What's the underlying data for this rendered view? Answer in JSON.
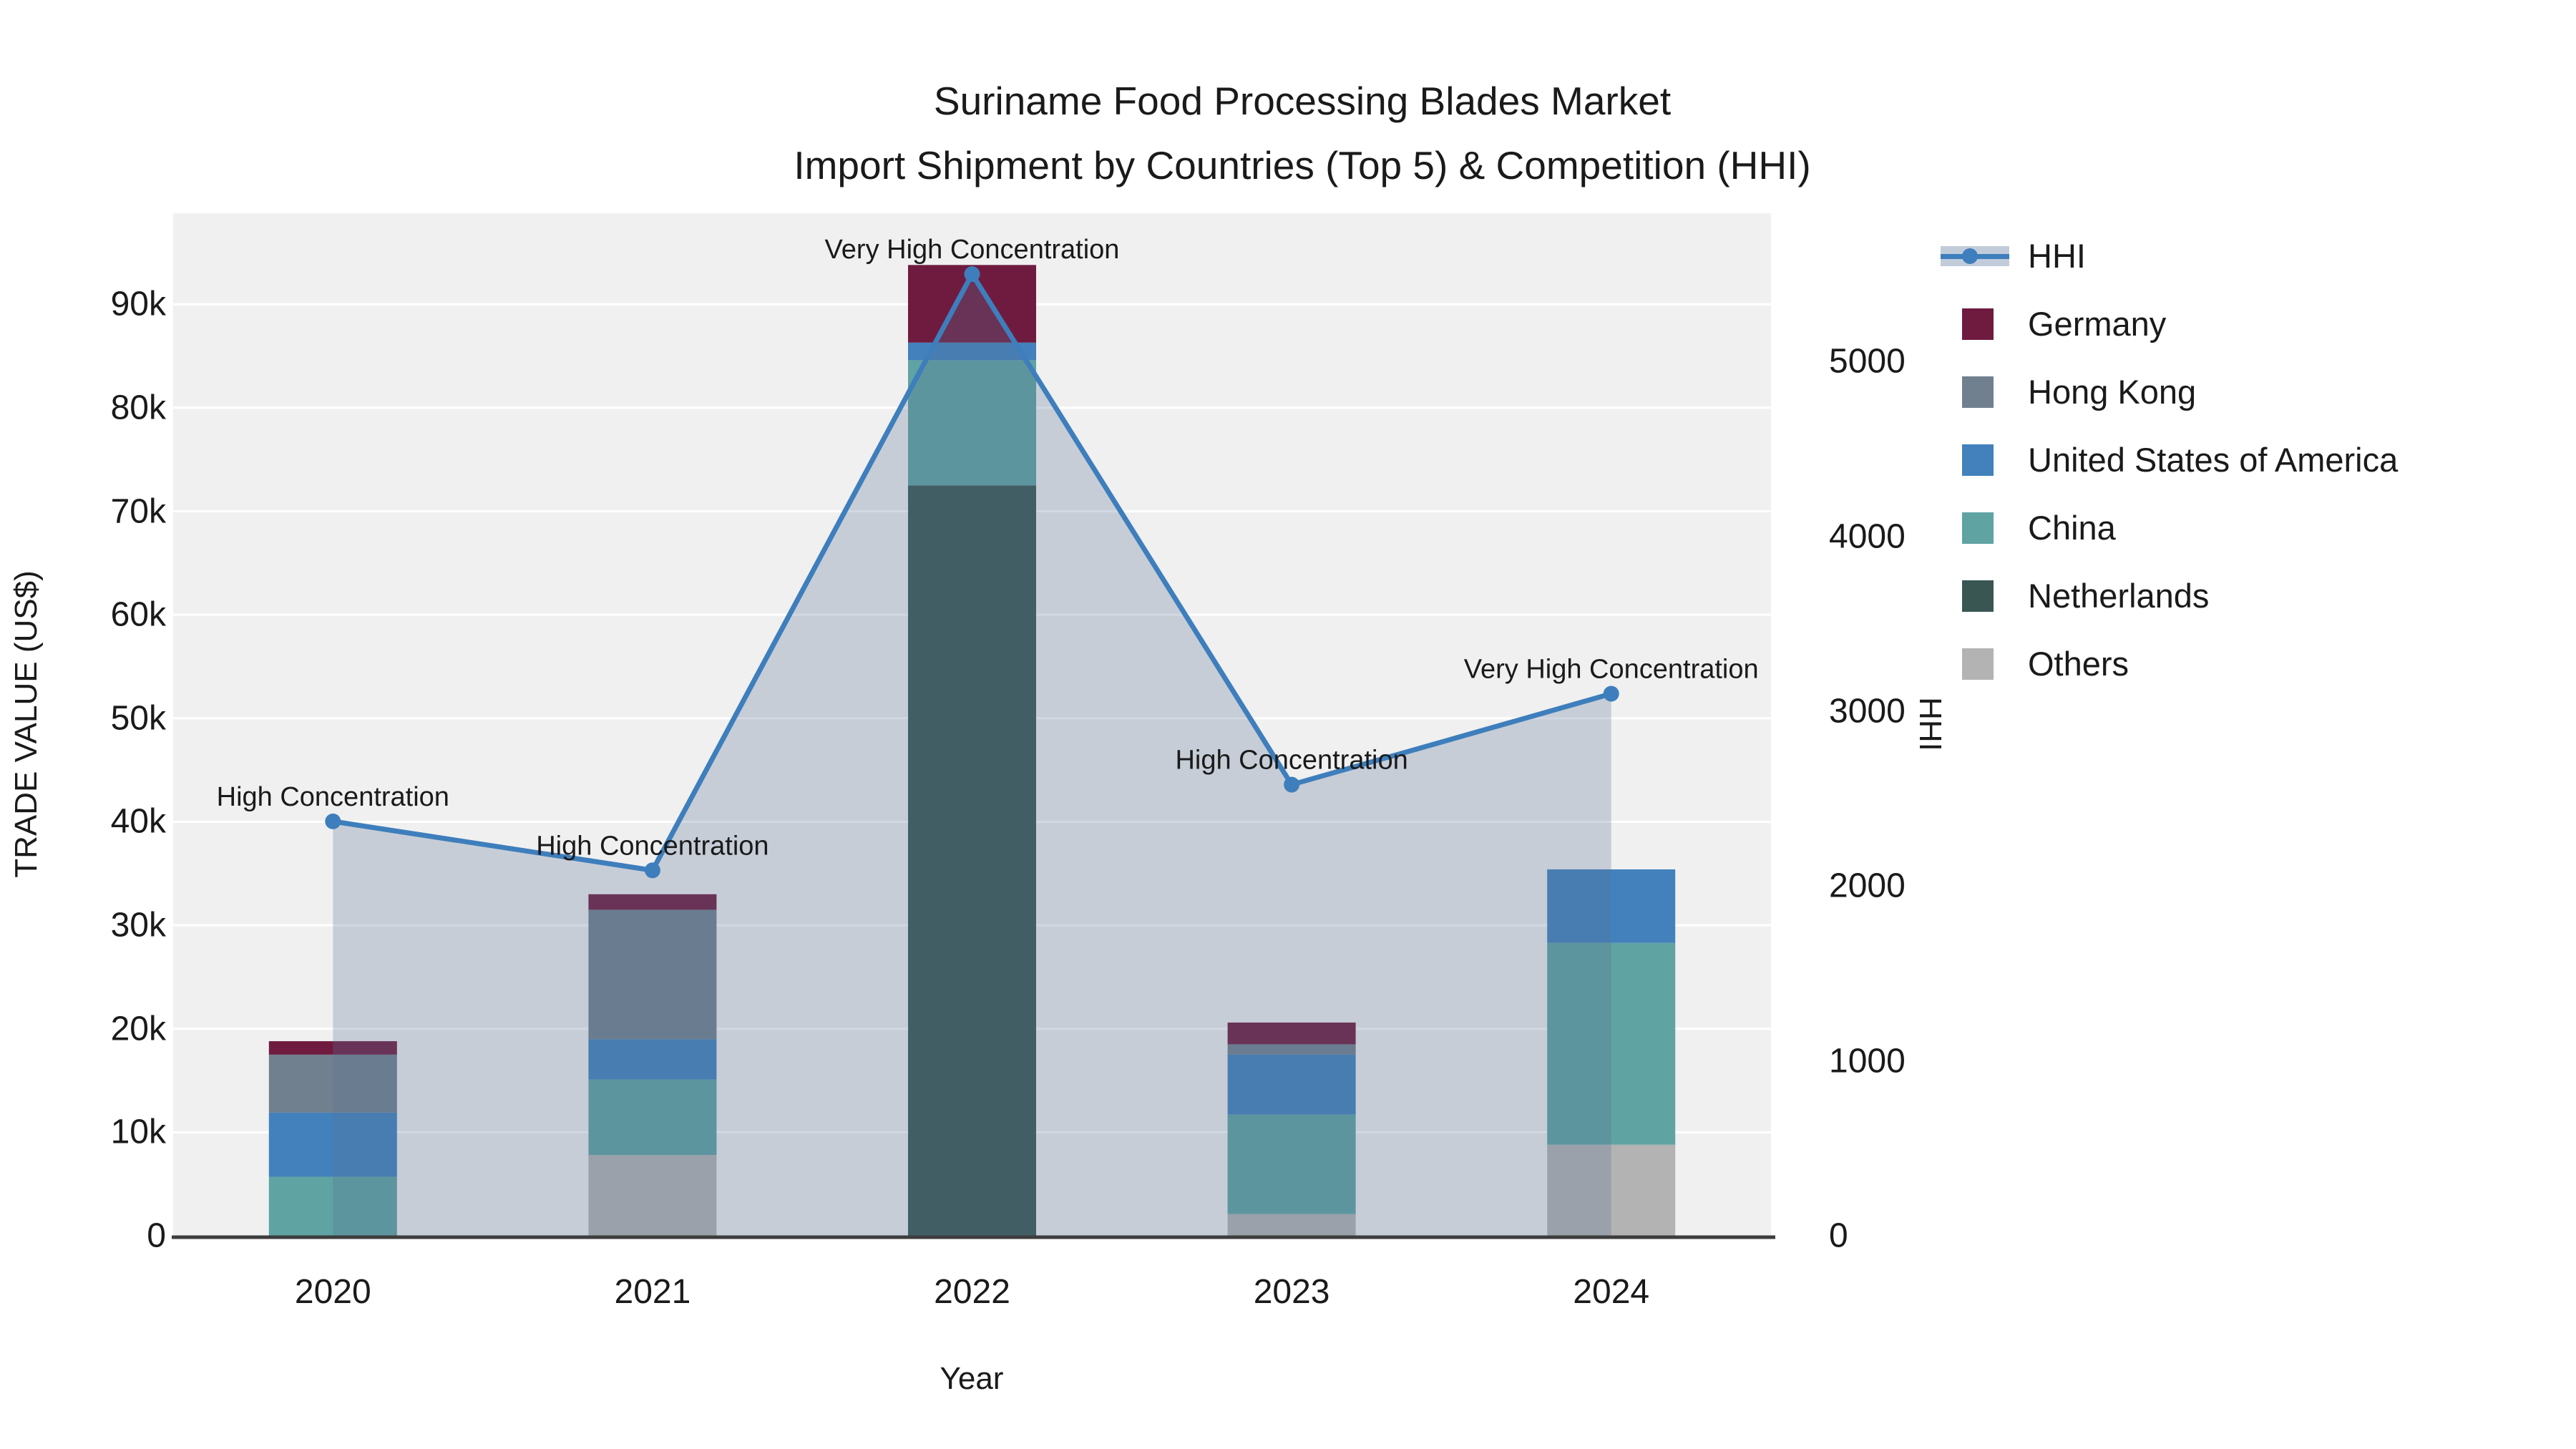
{
  "title": {
    "line1": "Suriname Food Processing Blades Market",
    "line2": "Import Shipment by Countries (Top 5) & Competition (HHI)"
  },
  "axes": {
    "x_label": "Year",
    "y_left_label": "TRADE VALUE (US$)",
    "y_right_label": "HHI",
    "y_left_ticks": [
      "0",
      "10k",
      "20k",
      "30k",
      "40k",
      "50k",
      "60k",
      "70k",
      "80k",
      "90k"
    ],
    "y_right_ticks": [
      "0",
      "1000",
      "2000",
      "3000",
      "4000",
      "5000"
    ]
  },
  "legend": {
    "items": [
      {
        "label": "HHI",
        "type": "line",
        "color": "#3E7EBC",
        "band_color": "#C2CBDA"
      },
      {
        "label": "Germany",
        "type": "swatch",
        "color": "#6F1B3F"
      },
      {
        "label": "Hong Kong",
        "type": "swatch",
        "color": "#71808E"
      },
      {
        "label": "United States of America",
        "type": "swatch",
        "color": "#4281BC"
      },
      {
        "label": "China",
        "type": "swatch",
        "color": "#5FA3A3"
      },
      {
        "label": "Netherlands",
        "type": "swatch",
        "color": "#395653"
      },
      {
        "label": "Others",
        "type": "swatch",
        "color": "#B3B3B3"
      }
    ]
  },
  "chart_data": {
    "type": "bar+line",
    "title": "Suriname Food Processing Blades Market — Import Shipment by Countries (Top 5) & Competition (HHI)",
    "categories": [
      "2020",
      "2021",
      "2022",
      "2023",
      "2024"
    ],
    "xlabel": "Year",
    "ylabel_left": "TRADE VALUE (US$)",
    "ylabel_right": "HHI",
    "bar_value_unit": "thousand US$",
    "stack_order_bottom_to_top": [
      "Others",
      "Netherlands",
      "China",
      "United States of America",
      "Hong Kong",
      "Germany"
    ],
    "series": [
      {
        "name": "Others",
        "color": "#B3B3B3",
        "values": [
          0,
          7.8,
          0,
          2.1,
          8.8
        ]
      },
      {
        "name": "Netherlands",
        "color": "#395653",
        "values": [
          0,
          0,
          72.5,
          0,
          0
        ]
      },
      {
        "name": "China",
        "color": "#5FA3A3",
        "values": [
          5.7,
          7.3,
          12.1,
          9.6,
          19.5
        ]
      },
      {
        "name": "United States of America",
        "color": "#4281BC",
        "values": [
          6.2,
          3.9,
          1.7,
          5.8,
          7.1
        ]
      },
      {
        "name": "Hong Kong",
        "color": "#71808E",
        "values": [
          5.6,
          12.5,
          0,
          1.0,
          0
        ]
      },
      {
        "name": "Germany",
        "color": "#6F1B3F",
        "values": [
          1.3,
          1.5,
          7.5,
          2.1,
          0
        ]
      }
    ],
    "bar_totals_thousand_usd": [
      18.8,
      33.0,
      93.8,
      20.6,
      35.4
    ],
    "line": {
      "name": "HHI",
      "color": "#3E7EBC",
      "area_fill": "#5A7396",
      "area_opacity": 0.28,
      "values": [
        2370,
        2090,
        5500,
        2580,
        3100
      ],
      "annotations": [
        "High Concentration",
        "High Concentration",
        "Very High Concentration",
        "High Concentration",
        "Very High Concentration"
      ]
    },
    "ylim_left_thousand_usd": [
      0,
      98.8
    ],
    "ylim_right_hhi": [
      0,
      5848
    ],
    "grid": "horizontal white lines every 10k on light gray plot background",
    "legend_position": "right side, outside plot",
    "plot_background": "#f0f0f0",
    "grid_color": "#ffffff",
    "spine_color": "#3d3d3d"
  }
}
